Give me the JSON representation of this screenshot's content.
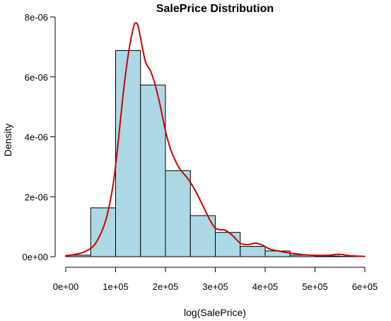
{
  "chart_data": {
    "type": "bar",
    "subtype": "histogram-with-density",
    "title": "SalePrice Distribution",
    "xlabel": "log(SalePrice)",
    "ylabel": "Density",
    "xlim": [
      0,
      600000
    ],
    "ylim": [
      0,
      8e-06
    ],
    "x_ticks": [
      0,
      100000,
      200000,
      300000,
      400000,
      500000,
      600000
    ],
    "x_tick_labels": [
      "0e+00",
      "1e+05",
      "2e+05",
      "3e+05",
      "4e+05",
      "5e+05",
      "6e+05"
    ],
    "y_ticks": [
      0,
      2e-06,
      4e-06,
      6e-06,
      8e-06
    ],
    "y_tick_labels": [
      "0e+00",
      "2e-06",
      "4e-06",
      "6e-06",
      "8e-06"
    ],
    "grid": false,
    "bin_edges": [
      0,
      50000,
      100000,
      150000,
      200000,
      250000,
      300000,
      350000,
      400000,
      450000,
      500000,
      550000,
      600000
    ],
    "bin_values": [
      5e-08,
      1.63e-06,
      6.88e-06,
      5.73e-06,
      2.87e-06,
      1.37e-06,
      8.1e-07,
      3.4e-07,
      1.9e-07,
      5e-08,
      2e-08,
      1e-08
    ],
    "bar_fill": "#add8e6",
    "bar_stroke": "#000000",
    "density_color": "#cc0000",
    "density": {
      "x": [
        0,
        20000,
        40000,
        60000,
        80000,
        95000,
        105000,
        115000,
        125000,
        135000,
        140000,
        145000,
        150000,
        160000,
        170000,
        180000,
        190000,
        200000,
        210000,
        220000,
        230000,
        245000,
        260000,
        275000,
        290000,
        300000,
        310000,
        320000,
        335000,
        350000,
        365000,
        380000,
        395000,
        410000,
        430000,
        450000,
        470000,
        490000,
        510000,
        530000,
        545000,
        555000,
        565000,
        580000,
        600000
      ],
      "y": [
        3e-08,
        8e-08,
        1.8e-07,
        4.5e-07,
        1.2e-06,
        2.4e-06,
        3.8e-06,
        5.4e-06,
        6.7e-06,
        7.6e-06,
        7.8e-06,
        7.7e-06,
        7.3e-06,
        6.5e-06,
        6.2e-06,
        5.7e-06,
        5e-06,
        4.2e-06,
        3.6e-06,
        3.2e-06,
        2.9e-06,
        2.6e-06,
        2.2e-06,
        1.7e-06,
        1.2e-06,
        9.5e-07,
        9e-07,
        8.8e-07,
        7e-07,
        4.5e-07,
        4e-07,
        4.5e-07,
        3.8e-07,
        2.5e-07,
        1.8e-07,
        1.2e-07,
        8e-08,
        5e-08,
        4e-08,
        5e-08,
        8e-08,
        7e-08,
        4e-08,
        2e-08,
        1e-08
      ]
    }
  }
}
